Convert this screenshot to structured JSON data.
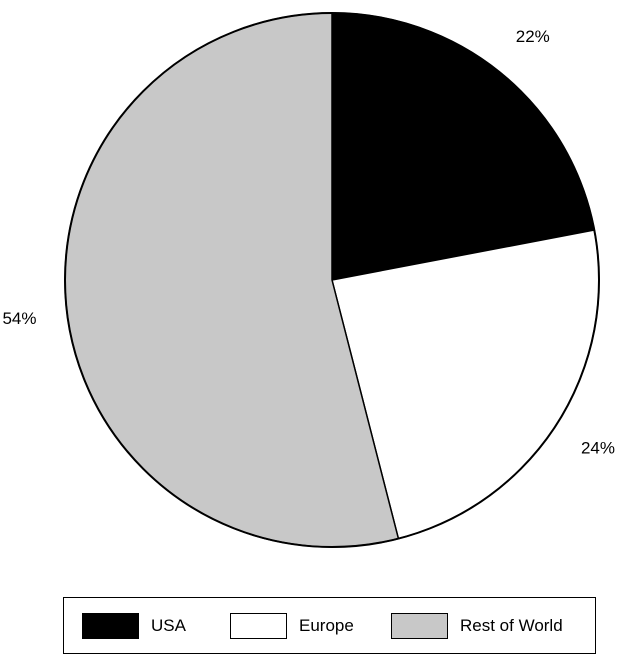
{
  "chart_data": {
    "type": "pie",
    "title": "",
    "slices": [
      {
        "label": "USA",
        "value": 22,
        "value_label": "22%",
        "color": "#000000"
      },
      {
        "label": "Europe",
        "value": 24,
        "value_label": "24%",
        "color": "#ffffff"
      },
      {
        "label": "Rest of World",
        "value": 54,
        "value_label": "54%",
        "color": "#c8c8c8"
      }
    ],
    "start_angle": "12 o'clock",
    "direction": "clockwise",
    "legend_placement": "bottom",
    "outline_color": "#000000"
  }
}
